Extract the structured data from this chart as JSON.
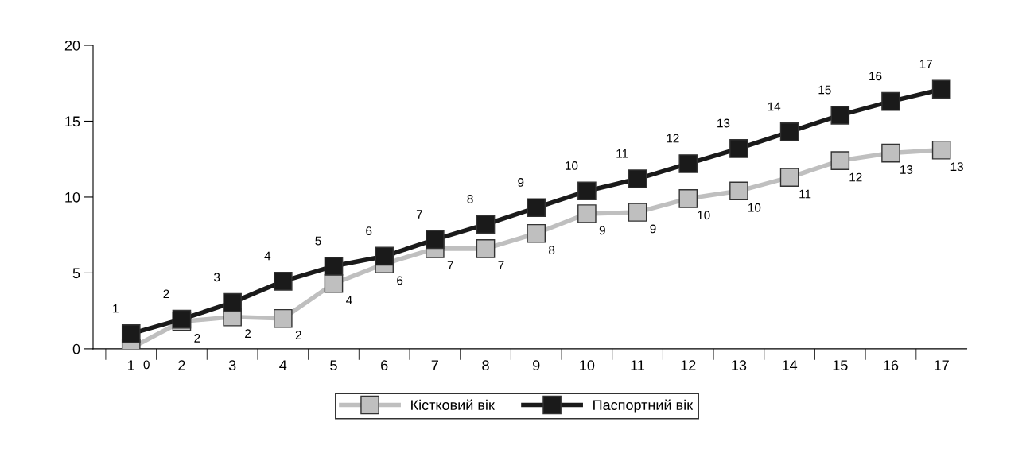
{
  "chart_data": {
    "type": "line",
    "categories": [
      "1",
      "2",
      "3",
      "4",
      "5",
      "6",
      "7",
      "8",
      "9",
      "10",
      "11",
      "12",
      "13",
      "14",
      "15",
      "16",
      "17"
    ],
    "series": [
      {
        "name": "Кістковий вік",
        "color": "#bfbfbf",
        "values": [
          0.05,
          1.8,
          2.1,
          2.0,
          4.3,
          5.6,
          6.6,
          6.6,
          7.6,
          8.9,
          9.0,
          9.9,
          10.4,
          11.3,
          12.4,
          12.9,
          13.1
        ],
        "value_labels": [
          "0",
          "2",
          "2",
          "2",
          "4",
          "6",
          "7",
          "7",
          "8",
          "9",
          "9",
          "10",
          "10",
          "11",
          "12",
          "13",
          "13"
        ]
      },
      {
        "name": "Паспортний вік",
        "color": "#1a1a1a",
        "values": [
          1.0,
          1.95,
          3.05,
          4.45,
          5.45,
          6.1,
          7.2,
          8.2,
          9.3,
          10.4,
          11.2,
          12.2,
          13.2,
          14.3,
          15.4,
          16.3,
          17.1
        ],
        "value_labels": [
          "1",
          "2",
          "3",
          "4",
          "5",
          "6",
          "7",
          "8",
          "9",
          "10",
          "11",
          "12",
          "13",
          "14",
          "15",
          "16",
          "17"
        ]
      }
    ],
    "ylim": [
      0,
      20
    ],
    "yticks": [
      0,
      5,
      10,
      15,
      20
    ],
    "grid": false,
    "legend": "bottom",
    "marker": "square",
    "line_style": "solid"
  }
}
